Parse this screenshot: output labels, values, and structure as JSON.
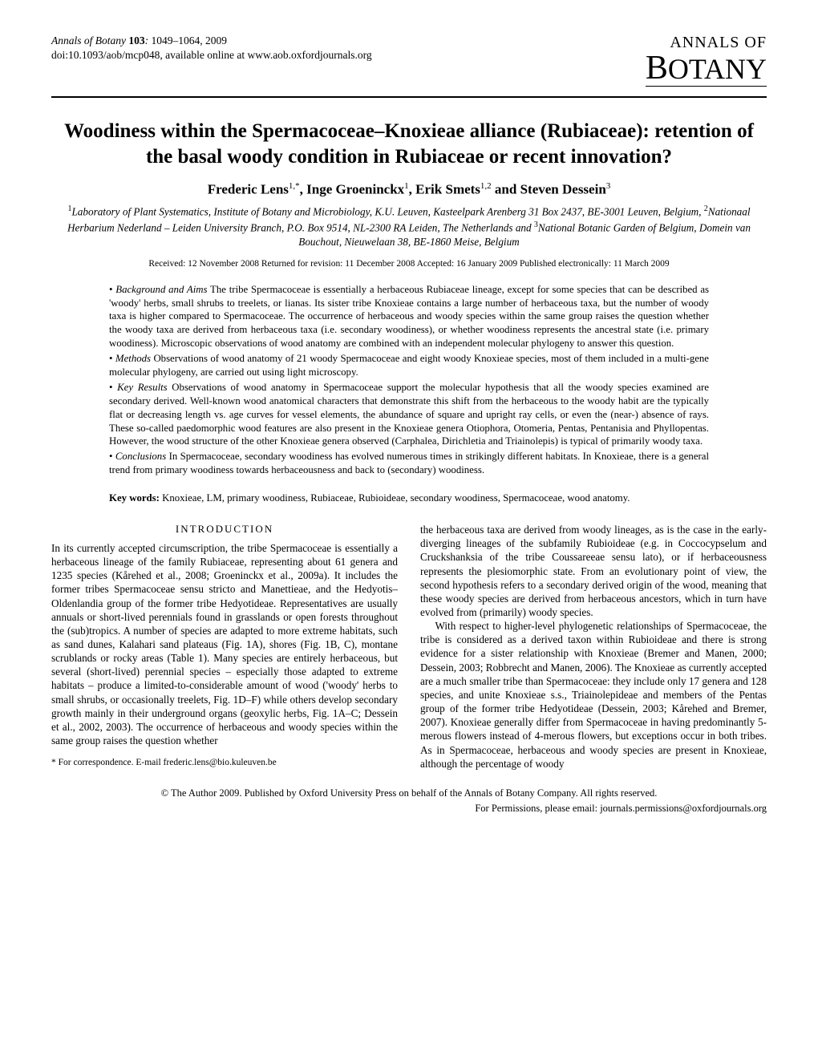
{
  "journal": {
    "name": "Annals of Botany",
    "volume": "103",
    "pages": "1049–1064, 2009",
    "doi_line": "doi:10.1093/aob/mcp048, available online at www.aob.oxfordjournals.org",
    "logo_top": "ANNALS OF",
    "logo_bottom": "BOTANY"
  },
  "title": "Woodiness within the Spermacoceae–Knoxieae alliance (Rubiaceae): retention of the basal woody condition in Rubiaceae or recent innovation?",
  "authors_html": "Frederic Lens<sup>1,*</sup>, Inge Groeninckx<sup>1</sup>, Erik Smets<sup>1,2</sup> and Steven Dessein<sup>3</sup>",
  "affiliations_html": "<sup>1</sup>Laboratory of Plant Systematics, Institute of Botany and Microbiology, K.U. Leuven, Kasteelpark Arenberg 31 Box 2437, BE-3001 Leuven, Belgium, <sup>2</sup>Nationaal Herbarium Nederland – Leiden University Branch, P.O. Box 9514, NL-2300 RA Leiden, The Netherlands and <sup>3</sup>National Botanic Garden of Belgium, Domein van Bouchout, Nieuwelaan 38, BE-1860 Meise, Belgium",
  "dates": "Received: 12 November 2008   Returned for revision: 11 December 2008   Accepted: 16 January 2009   Published electronically: 11 March 2009",
  "abstract": {
    "background": {
      "label": "Background and Aims",
      "text": " The tribe Spermacoceae is essentially a herbaceous Rubiaceae lineage, except for some species that can be described as 'woody' herbs, small shrubs to treelets, or lianas. Its sister tribe Knoxieae contains a large number of herbaceous taxa, but the number of woody taxa is higher compared to Spermacoceae. The occurrence of herbaceous and woody species within the same group raises the question whether the woody taxa are derived from herbaceous taxa (i.e. secondary woodiness), or whether woodiness represents the ancestral state (i.e. primary woodiness). Microscopic observations of wood anatomy are combined with an independent molecular phylogeny to answer this question."
    },
    "methods": {
      "label": "Methods",
      "text": " Observations of wood anatomy of 21 woody Spermacoceae and eight woody Knoxieae species, most of them included in a multi-gene molecular phylogeny, are carried out using light microscopy."
    },
    "keyresults": {
      "label": "Key Results",
      "text": " Observations of wood anatomy in Spermacoceae support the molecular hypothesis that all the woody species examined are secondary derived. Well-known wood anatomical characters that demonstrate this shift from the herbaceous to the woody habit are the typically flat or decreasing length vs. age curves for vessel elements, the abundance of square and upright ray cells, or even the (near-) absence of rays. These so-called paedomorphic wood features are also present in the Knoxieae genera Otiophora, Otomeria, Pentas, Pentanisia and Phyllopentas. However, the wood structure of the other Knoxieae genera observed (Carphalea, Dirichletia and Triainolepis) is typical of primarily woody taxa."
    },
    "conclusions": {
      "label": "Conclusions",
      "text": " In Spermacoceae, secondary woodiness has evolved numerous times in strikingly different habitats. In Knoxieae, there is a general trend from primary woodiness towards herbaceousness and back to (secondary) woodiness."
    }
  },
  "keywords": {
    "label": "Key words:",
    "text": " Knoxieae, LM, primary woodiness, Rubiaceae, Rubioideae, secondary woodiness, Spermacoceae, wood anatomy."
  },
  "intro_head": "INTRODUCTION",
  "col1": {
    "p1": "In its currently accepted circumscription, the tribe Spermacoceae is essentially a herbaceous lineage of the family Rubiaceae, representing about 61 genera and 1235 species (Kårehed et al., 2008; Groeninckx et al., 2009a). It includes the former tribes Spermacoceae sensu stricto and Manettieae, and the Hedyotis–Oldenlandia group of the former tribe Hedyotideae. Representatives are usually annuals or short-lived perennials found in grasslands or open forests throughout the (sub)tropics. A number of species are adapted to more extreme habitats, such as sand dunes, Kalahari sand plateaus (Fig. 1A), shores (Fig. 1B, C), montane scrublands or rocky areas (Table 1). Many species are entirely herbaceous, but several (short-lived) perennial species – especially those adapted to extreme habitats – produce a limited-to-considerable amount of wood ('woody' herbs to small shrubs, or occasionally treelets, Fig. 1D–F) while others develop secondary growth mainly in their underground organs (geoxylic herbs, Fig. 1A–C; Dessein et al., 2002, 2003). The occurrence of herbaceous and woody species within the same group raises the question whether",
    "corr": "* For correspondence. E-mail frederic.lens@bio.kuleuven.be"
  },
  "col2": {
    "p1": "the herbaceous taxa are derived from woody lineages, as is the case in the early-diverging lineages of the subfamily Rubioideae (e.g. in Coccocypselum and Cruckshanksia of the tribe Coussareeae sensu lato), or if herbaceousness represents the plesiomorphic state. From an evolutionary point of view, the second hypothesis refers to a secondary derived origin of the wood, meaning that these woody species are derived from herbaceous ancestors, which in turn have evolved from (primarily) woody species.",
    "p2": "With respect to higher-level phylogenetic relationships of Spermacoceae, the tribe is considered as a derived taxon within Rubioideae and there is strong evidence for a sister relationship with Knoxieae (Bremer and Manen, 2000; Dessein, 2003; Robbrecht and Manen, 2006). The Knoxieae as currently accepted are a much smaller tribe than Spermacoceae: they include only 17 genera and 128 species, and unite Knoxieae s.s., Triainolepideae and members of the Pentas group of the former tribe Hedyotideae (Dessein, 2003; Kårehed and Bremer, 2007). Knoxieae generally differ from Spermacoceae in having predominantly 5-merous flowers instead of 4-merous flowers, but exceptions occur in both tribes. As in Spermacoceae, herbaceous and woody species are present in Knoxieae, although the percentage of woody"
  },
  "footer": {
    "line1": "© The Author 2009. Published by Oxford University Press on behalf of the Annals of Botany Company. All rights reserved.",
    "line2": "For Permissions, please email: journals.permissions@oxfordjournals.org"
  }
}
